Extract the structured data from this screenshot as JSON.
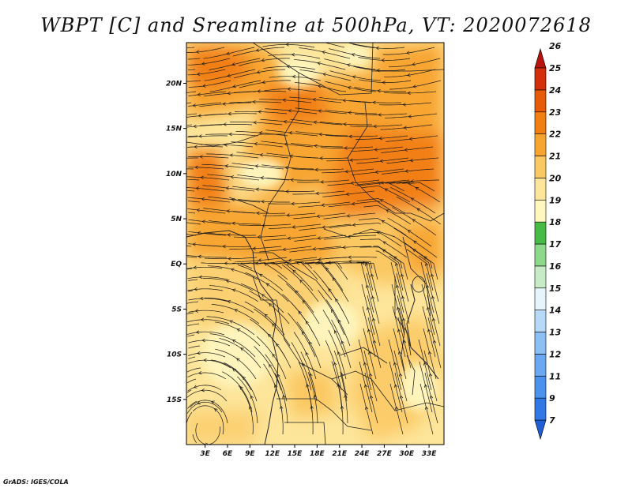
{
  "title": "WBPT [C] and Sreamline at 500hPa, VT: 2020072618",
  "credit": "GrADS: IGES/COLA",
  "map": {
    "lat_labels": [
      "20N",
      "15N",
      "10N",
      "5N",
      "EQ",
      "5S",
      "10S",
      "15S"
    ],
    "lat_values": [
      20,
      15,
      10,
      5,
      0,
      -5,
      -10,
      -15
    ],
    "lon_labels": [
      "3E",
      "6E",
      "9E",
      "12E",
      "15E",
      "18E",
      "21E",
      "24E",
      "27E",
      "30E",
      "33E"
    ],
    "lon_values": [
      3,
      6,
      9,
      12,
      15,
      18,
      21,
      24,
      27,
      30,
      33
    ],
    "lon_range": [
      0.5,
      35
    ],
    "lat_range": [
      -20,
      24.5
    ]
  },
  "colorbar": {
    "labels": [
      "7",
      "9",
      "11",
      "12",
      "13",
      "14",
      "15",
      "16",
      "17",
      "18",
      "19",
      "20",
      "21",
      "22",
      "23",
      "24",
      "25",
      "26"
    ],
    "colors": [
      "#1f5fd6",
      "#2f78e6",
      "#4a92ec",
      "#6aa9f1",
      "#8cc0f5",
      "#b6d9f8",
      "#e6f5fb",
      "#c7ebc4",
      "#8ed88b",
      "#46bb45",
      "#fff7bd",
      "#fde59a",
      "#fbc862",
      "#f8a530",
      "#f27f12",
      "#e65a08",
      "#d42e0a",
      "#b8140e"
    ]
  },
  "colors": {
    "field_base": "#fde59a",
    "warm": "#f8a530",
    "hot": "#f27f12",
    "pale": "#fff4bb",
    "streamline": "#1a1a1a"
  }
}
